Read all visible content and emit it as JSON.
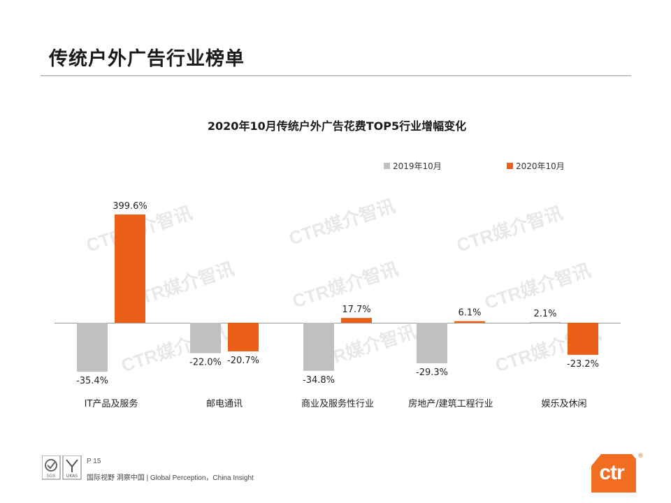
{
  "page": {
    "title": "传统户外广告行业榜单",
    "page_number": "P 15",
    "tagline": "国际视野  洞察中国 |  Global Perception，China Insight",
    "brand": "ctr",
    "registered_mark": "®",
    "watermark": "CTR媒介智讯",
    "cert_marks": [
      "SGS",
      "UKAS"
    ]
  },
  "colors": {
    "series_2019": "#c0c0c0",
    "series_2020": "#ec5f18",
    "brand": "#f26d1f"
  },
  "chart_data": {
    "type": "bar",
    "title": "2020年10月传统户外广告花费TOP5行业增幅变化",
    "categories": [
      "IT产品及服务",
      "邮电通讯",
      "商业及服务性行业",
      "房地产/建筑工程行业",
      "娱乐及休闲"
    ],
    "series": [
      {
        "name": "2019年10月",
        "values": [
          -35.4,
          -22.0,
          -34.8,
          -29.3,
          2.1
        ],
        "labels": [
          "-35.4%",
          "-22.0%",
          "-34.8%",
          "-29.3%",
          "2.1%"
        ]
      },
      {
        "name": "2020年10月",
        "values": [
          399.6,
          -20.7,
          17.7,
          6.1,
          -23.2
        ],
        "labels": [
          "399.6%",
          "-20.7%",
          "17.7%",
          "6.1%",
          "-23.2%"
        ]
      }
    ],
    "legend_position": "top-right",
    "unit": "%",
    "grid": false
  }
}
